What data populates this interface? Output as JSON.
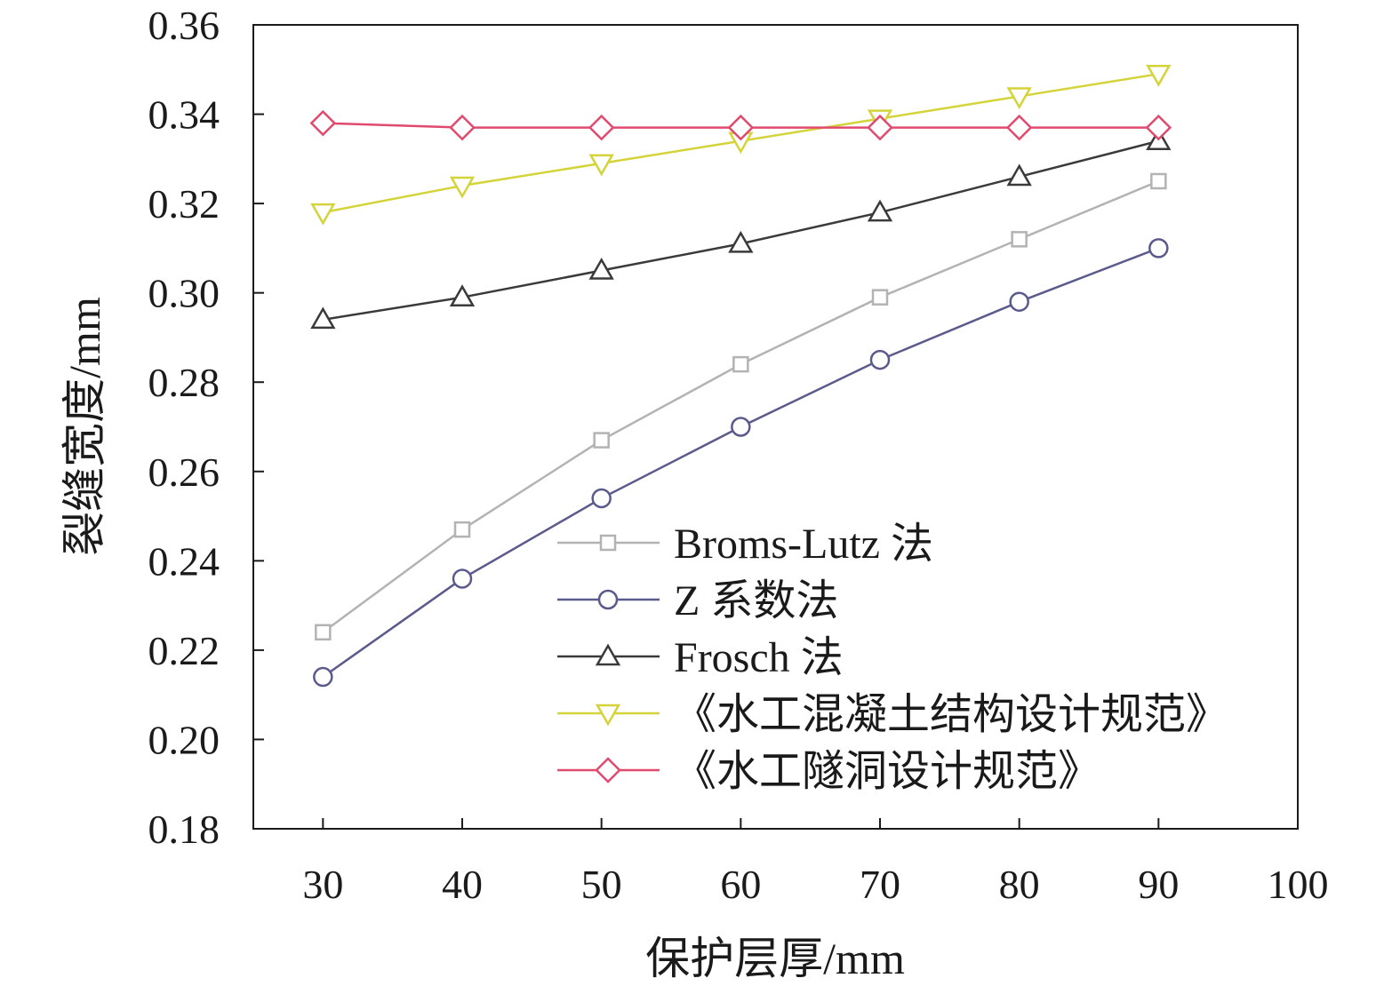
{
  "chart_data": {
    "type": "line",
    "title": "",
    "xlabel": "保护层厚/mm",
    "ylabel": "裂缝宽度/mm",
    "xlim": [
      25,
      100
    ],
    "ylim": [
      0.18,
      0.36
    ],
    "xticks": [
      30,
      40,
      50,
      60,
      70,
      80,
      90,
      100
    ],
    "yticks": [
      0.18,
      0.2,
      0.22,
      0.24,
      0.26,
      0.28,
      0.3,
      0.32,
      0.34,
      0.36
    ],
    "xtick_labels": [
      "30",
      "40",
      "50",
      "60",
      "70",
      "80",
      "90",
      "100"
    ],
    "ytick_labels": [
      "0.18",
      "0.20",
      "0.22",
      "0.24",
      "0.26",
      "0.28",
      "0.30",
      "0.32",
      "0.34",
      "0.36"
    ],
    "grid": false,
    "legend_position": "lower-right",
    "x": [
      30,
      40,
      50,
      60,
      70,
      80,
      90
    ],
    "series": [
      {
        "name": "Broms-Lutz 法",
        "marker": "square",
        "color": "#b3b3b3",
        "values": [
          0.224,
          0.247,
          0.267,
          0.284,
          0.299,
          0.312,
          0.325
        ]
      },
      {
        "name": "Z 系数法",
        "marker": "circle",
        "color": "#5a5a8c",
        "values": [
          0.214,
          0.236,
          0.254,
          0.27,
          0.285,
          0.298,
          0.31
        ]
      },
      {
        "name": "Frosch 法",
        "marker": "triangle-up",
        "color": "#3a3a3a",
        "values": [
          0.294,
          0.299,
          0.305,
          0.311,
          0.318,
          0.326,
          0.334
        ]
      },
      {
        "name": "《水工混凝土结构设计规范》",
        "marker": "triangle-down",
        "color": "#d4d43a",
        "values": [
          0.318,
          0.324,
          0.329,
          0.334,
          0.339,
          0.344,
          0.349
        ]
      },
      {
        "name": "《水工隧洞设计规范》",
        "marker": "diamond",
        "color": "#e04a6e",
        "values": [
          0.338,
          0.337,
          0.337,
          0.337,
          0.337,
          0.337,
          0.337
        ]
      }
    ]
  }
}
